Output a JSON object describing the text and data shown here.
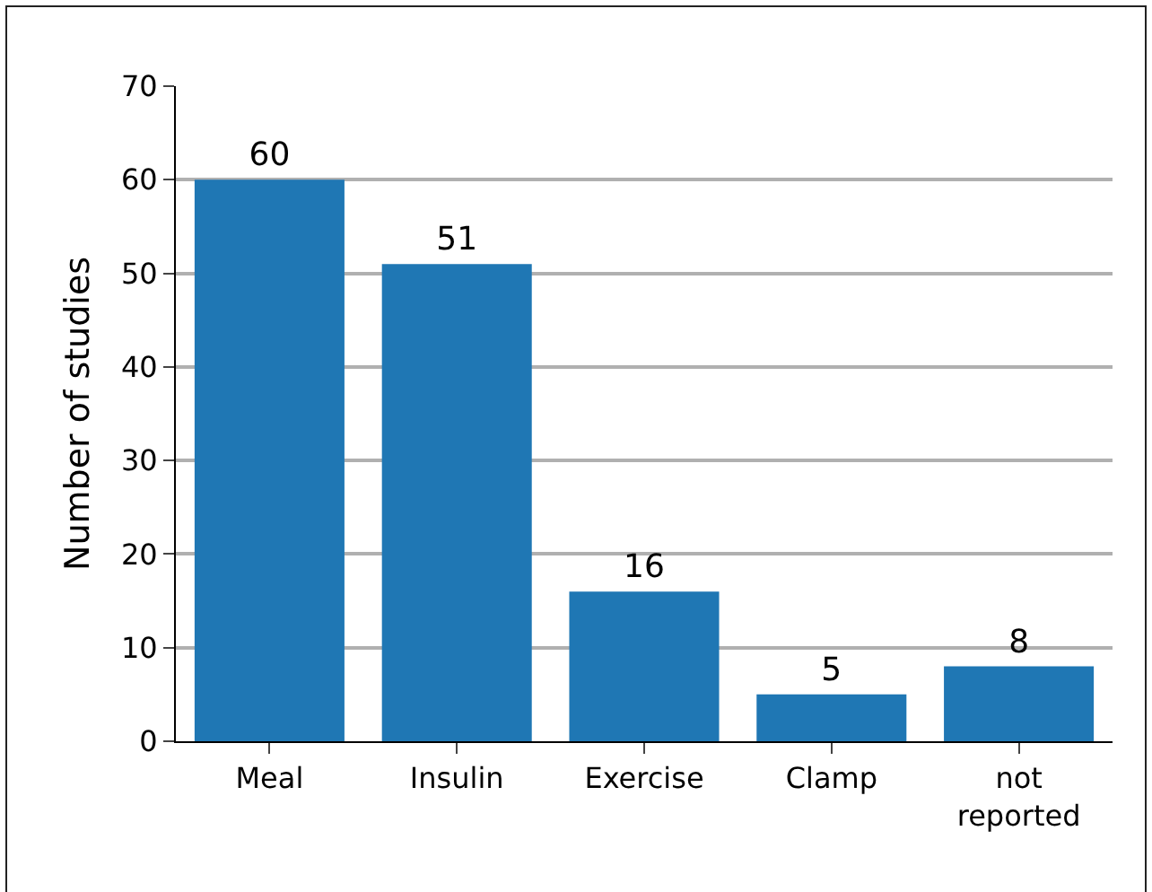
{
  "chart_data": {
    "type": "bar",
    "ylabel": "Number of studies",
    "categories": [
      "Meal",
      "Insulin",
      "Exercise",
      "Clamp",
      "not reported"
    ],
    "values": [
      60,
      51,
      16,
      5,
      8
    ],
    "color": "#1f77b4",
    "ylim": [
      0,
      70
    ],
    "yticks": [
      0,
      10,
      20,
      30,
      40,
      50,
      60,
      70
    ],
    "grid": "y",
    "data_labels": true
  }
}
